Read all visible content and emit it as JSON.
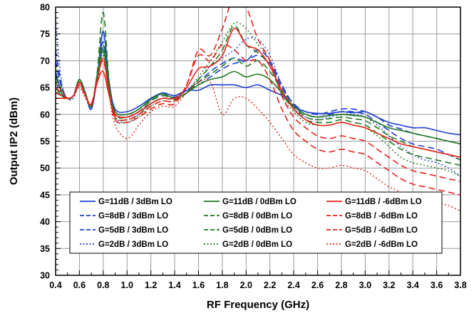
{
  "chart_data": {
    "type": "line",
    "title": "",
    "xlabel": "RF Frequency (GHz)",
    "ylabel": "Output IP2 (dBm)",
    "xlim": [
      0.4,
      3.8
    ],
    "ylim": [
      30,
      80
    ],
    "x_ticks": [
      "0.4",
      "0.6",
      "0.8",
      "1.0",
      "1.2",
      "1.4",
      "1.6",
      "1.8",
      "2.0",
      "2.2",
      "2.4",
      "2.6",
      "2.8",
      "3.0",
      "3.2",
      "3.4",
      "3.6",
      "3.8"
    ],
    "y_ticks": [
      "30",
      "35",
      "40",
      "45",
      "50",
      "55",
      "60",
      "65",
      "70",
      "75",
      "80"
    ],
    "grid": true,
    "legend_position": "lower-center-inside",
    "colors": {
      "blue": "#1f3fd0",
      "green": "#1f7a1f",
      "red": "#e8201a"
    },
    "x": [
      0.4,
      0.45,
      0.5,
      0.55,
      0.6,
      0.65,
      0.7,
      0.75,
      0.8,
      0.85,
      0.9,
      1.0,
      1.1,
      1.2,
      1.3,
      1.4,
      1.5,
      1.6,
      1.7,
      1.8,
      1.9,
      2.0,
      2.1,
      2.2,
      2.3,
      2.4,
      2.5,
      2.6,
      2.7,
      2.8,
      2.9,
      3.0,
      3.1,
      3.2,
      3.3,
      3.4,
      3.5,
      3.6,
      3.7,
      3.8
    ],
    "series": [
      {
        "name": "G=11dB / 3dBm LO",
        "color": "blue",
        "style": "solid",
        "values": [
          68,
          64,
          63,
          63.5,
          66.5,
          64,
          61,
          67,
          75.5,
          66,
          61,
          60.5,
          61.5,
          63,
          64,
          63.5,
          64.5,
          64.5,
          65.5,
          65.5,
          65.5,
          65,
          65.5,
          64.5,
          63.5,
          61.5,
          60.5,
          60.2,
          60.2,
          60.5,
          60.3,
          60.5,
          59.5,
          58.5,
          58,
          57.5,
          57.5,
          57,
          56.5,
          56.2
        ]
      },
      {
        "name": "G=8dB / 3dBm LO",
        "color": "blue",
        "style": "dash",
        "values": [
          70,
          65,
          63,
          63.5,
          66.5,
          64,
          61.2,
          67.5,
          73.5,
          65.5,
          60.5,
          60,
          61,
          62.8,
          63.8,
          63.5,
          64.5,
          65.5,
          67,
          68.5,
          69.5,
          70,
          71,
          69.5,
          65,
          62,
          60.5,
          60,
          60.5,
          61,
          61,
          60.5,
          59.5,
          58,
          57.3,
          56.5,
          56,
          55.5,
          55,
          54.5
        ]
      },
      {
        "name": "G=5dB / 3dBm LO",
        "color": "blue",
        "style": "dash",
        "values": [
          72,
          65.5,
          63,
          63.5,
          66,
          63.8,
          61,
          67,
          72.5,
          65,
          60,
          59.5,
          60.5,
          62.5,
          63.5,
          63.2,
          64.5,
          66,
          68,
          69.5,
          70.5,
          70,
          72,
          70,
          65.5,
          61.8,
          60,
          59.5,
          60,
          60.5,
          60.5,
          60,
          58.5,
          57,
          55.5,
          54.5,
          54,
          53.5,
          52.5,
          51.5
        ]
      },
      {
        "name": "G=2dB / 3dBm LO",
        "color": "blue",
        "style": "dot",
        "values": [
          77.5,
          66,
          63,
          63,
          65.5,
          63.5,
          61,
          66.5,
          71,
          64.5,
          59.5,
          58.5,
          60,
          62,
          63,
          63,
          64.5,
          66.5,
          69,
          70.5,
          72,
          74,
          74,
          71,
          65.5,
          61.2,
          59.5,
          59,
          59.5,
          60,
          60,
          59.5,
          58,
          56,
          54,
          52.5,
          51.5,
          51,
          50,
          48.5
        ]
      },
      {
        "name": "G=11dB / 0dBm LO",
        "color": "green",
        "style": "solid",
        "values": [
          65,
          63.5,
          63,
          63.5,
          66.5,
          63.8,
          61.5,
          67,
          72,
          65,
          60.5,
          60,
          61,
          62.8,
          63.8,
          63,
          64,
          65.5,
          66.5,
          67,
          68,
          67,
          67.5,
          66.5,
          64,
          61.5,
          60,
          59.5,
          59.8,
          60,
          59.8,
          59.5,
          58.5,
          57.5,
          57,
          56.5,
          56,
          55.5,
          55,
          54.5
        ]
      },
      {
        "name": "G=8dB / 0dBm LO",
        "color": "green",
        "style": "dash",
        "values": [
          66,
          64,
          63,
          63.5,
          66.5,
          64,
          61.5,
          68,
          79,
          66,
          60,
          59.5,
          60.5,
          62.5,
          63.5,
          63,
          64,
          66,
          67.5,
          69,
          70.5,
          69,
          70,
          68,
          64.5,
          61.5,
          59.5,
          59,
          59.2,
          59.5,
          59.2,
          58.8,
          57.5,
          56,
          55,
          54,
          53.5,
          53,
          52.5,
          51.5
        ]
      },
      {
        "name": "G=5dB / 0dBm LO",
        "color": "green",
        "style": "dash",
        "values": [
          67,
          64.5,
          63,
          63.5,
          66,
          63.8,
          61.5,
          67.5,
          73,
          65,
          59.5,
          59,
          60,
          62,
          63,
          62.8,
          64,
          66.5,
          69,
          72,
          76.5,
          73,
          71.5,
          69,
          64,
          61,
          59,
          58.5,
          58.5,
          59,
          58.5,
          58,
          56.5,
          55,
          53.5,
          52.5,
          52,
          51.5,
          51,
          50.5
        ]
      },
      {
        "name": "G=2dB / 0dBm LO",
        "color": "green",
        "style": "dot",
        "values": [
          69,
          65,
          63,
          63.5,
          65.5,
          63.5,
          61.5,
          67,
          71.5,
          64.5,
          59,
          58.5,
          59.5,
          61.5,
          62.5,
          62.5,
          64,
          67,
          70,
          73.5,
          77,
          76,
          73,
          70,
          63.5,
          60.5,
          58.5,
          58,
          58,
          58.5,
          58,
          57.5,
          56,
          54,
          52,
          51,
          50.5,
          50,
          49.5,
          48.5
        ]
      },
      {
        "name": "G=11dB / -6dBm LO",
        "color": "red",
        "style": "solid",
        "values": [
          63,
          63,
          63,
          63.5,
          66,
          63.5,
          61.8,
          66,
          68,
          63.5,
          60,
          59.5,
          60.5,
          62,
          63,
          63,
          65,
          68.5,
          69,
          71,
          76,
          73,
          72,
          69,
          64.5,
          61,
          59,
          58,
          58,
          58.5,
          58,
          57.5,
          56.5,
          55.5,
          54.5,
          54,
          53.5,
          53,
          52.5,
          52
        ]
      },
      {
        "name": "G=8dB / -6dBm LO",
        "color": "red",
        "style": "dash",
        "values": [
          64,
          63.5,
          63,
          63.5,
          66,
          63.5,
          62,
          66.5,
          70,
          64,
          59.5,
          59,
          60,
          61.5,
          62.5,
          62.5,
          65.5,
          72,
          71,
          76,
          82,
          80,
          74,
          70,
          63.5,
          59.5,
          57.5,
          56,
          55.5,
          56,
          55.5,
          55,
          53.5,
          52,
          50.5,
          49.5,
          49,
          48.5,
          48,
          47.5
        ]
      },
      {
        "name": "G=5dB / -6dBm LO",
        "color": "red",
        "style": "dash",
        "values": [
          65,
          64,
          63,
          63.5,
          65.5,
          63.5,
          62,
          66.5,
          70.5,
          64,
          59,
          58.5,
          59.5,
          61,
          62,
          62,
          65.5,
          71,
          70,
          73,
          72,
          70,
          70,
          66.5,
          61,
          57,
          55,
          53.5,
          53,
          53.5,
          53,
          52.5,
          51,
          49.5,
          48,
          47,
          46.5,
          46,
          45.5,
          45
        ]
      },
      {
        "name": "G=2dB / -6dBm LO",
        "color": "red",
        "style": "dot",
        "values": [
          66,
          64.5,
          63,
          63.5,
          65,
          63,
          62,
          66,
          70.5,
          63.5,
          58,
          55.5,
          58,
          60.5,
          61.5,
          61.5,
          64,
          66,
          66,
          60,
          63,
          63,
          61,
          58.5,
          55.5,
          52.5,
          51,
          50,
          50,
          50.5,
          50,
          49.5,
          48,
          46.5,
          45.5,
          44.5,
          44,
          43.5,
          43,
          42
        ]
      }
    ]
  }
}
